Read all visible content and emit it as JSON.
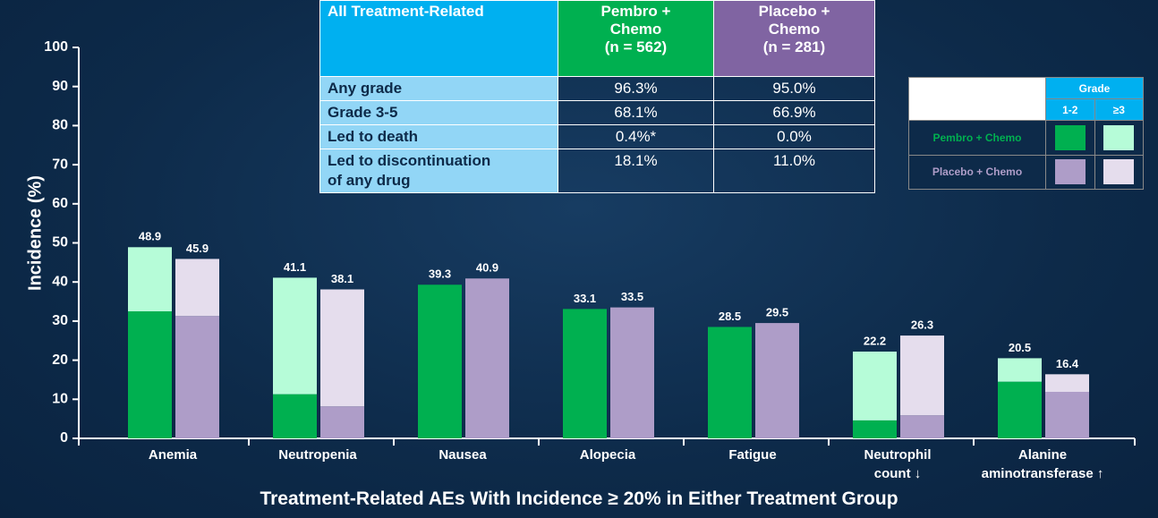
{
  "chart_data": {
    "type": "stacked_bar",
    "title": "Treatment-Related AEs With Incidence ≥ 20% in Either Treatment Group",
    "y_label": "Incidence (%)",
    "categories": [
      "Anemia",
      "Neutropenia",
      "Nausea",
      "Alopecia",
      "Fatigue",
      "Neutrophil\ncount ↓",
      "Alanine\naminotransferase ↑"
    ],
    "ylim": [
      0,
      100
    ],
    "yticks": [
      0,
      10,
      20,
      30,
      40,
      50,
      60,
      70,
      80,
      90,
      100
    ],
    "legend_title": "Grade",
    "grades": [
      "1-2",
      "≥3"
    ],
    "groups": [
      {
        "name": "Pembro + Chemo",
        "colors": [
          "#00b050",
          "#b6fcd8"
        ],
        "values": [
          [
            32.5,
            11.3,
            39.3,
            33.1,
            28.5,
            4.6,
            14.5
          ],
          [
            16.4,
            29.8,
            0,
            0,
            0,
            17.6,
            6.0
          ]
        ],
        "totals": [
          48.9,
          41.1,
          39.3,
          33.1,
          28.5,
          22.2,
          20.5
        ]
      },
      {
        "name": "Placebo + Chemo",
        "colors": [
          "#ae9dc8",
          "#e5dded"
        ],
        "values": [
          [
            31.3,
            8.2,
            40.9,
            33.5,
            29.5,
            5.9,
            11.9
          ],
          [
            14.6,
            29.9,
            0,
            0,
            0,
            20.4,
            4.5
          ]
        ],
        "totals": [
          45.9,
          38.1,
          40.9,
          33.5,
          29.5,
          26.3,
          16.4
        ]
      }
    ]
  },
  "summary_table": {
    "header": [
      "All Treatment-Related",
      "Pembro +\nChemo\n(n = 562)",
      "Placebo +\nChemo\n(n = 281)"
    ],
    "rows": [
      [
        "Any grade",
        "96.3%",
        "95.0%"
      ],
      [
        "Grade 3-5",
        "68.1%",
        "66.9%"
      ],
      [
        "Led to death",
        "0.4%*",
        "0.0%"
      ],
      [
        "Led to discontinuation\nof any drug",
        "18.1%",
        "11.0%"
      ]
    ]
  }
}
